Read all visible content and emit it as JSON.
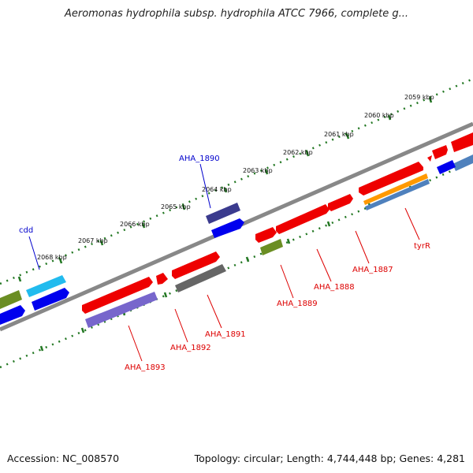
{
  "title": "Aeromonas hydrophila subsp. hydrophila ATCC 7966, complete g...",
  "footer": {
    "accession": "Accession: NC_008570",
    "topology": "Topology: circular; Length: 4,744,448 bp; Genes: 4,281"
  },
  "ruler_labels": [
    "2059 kbp",
    "2060 kbp",
    "2061 kbp",
    "2062 kbp",
    "2063 kbp",
    "2064 kbp",
    "2065 kbp",
    "2066 kbp",
    "2067 kbp",
    "2068 kbp"
  ],
  "gene_labels": [
    {
      "text": "cdd",
      "color": "#0000cc"
    },
    {
      "text": "AHA_1890",
      "color": "#0000cc"
    },
    {
      "text": "AHA_1893",
      "color": "#dd0000"
    },
    {
      "text": "AHA_1892",
      "color": "#dd0000"
    },
    {
      "text": "AHA_1891",
      "color": "#dd0000"
    },
    {
      "text": "AHA_1889",
      "color": "#dd0000"
    },
    {
      "text": "AHA_1888",
      "color": "#dd0000"
    },
    {
      "text": "AHA_1887",
      "color": "#dd0000"
    },
    {
      "text": "tyrR",
      "color": "#dd0000"
    }
  ],
  "colors": {
    "red": "#ee0000",
    "blue": "#0000ee",
    "cyan": "#22bbee",
    "olive": "#6b8e23",
    "navy": "#3b3b8e",
    "purple": "#7766cc",
    "gray": "#666666",
    "orange": "#ff9900",
    "steel": "#4f81bd",
    "tick": "#227722",
    "backbone": "#888888"
  }
}
